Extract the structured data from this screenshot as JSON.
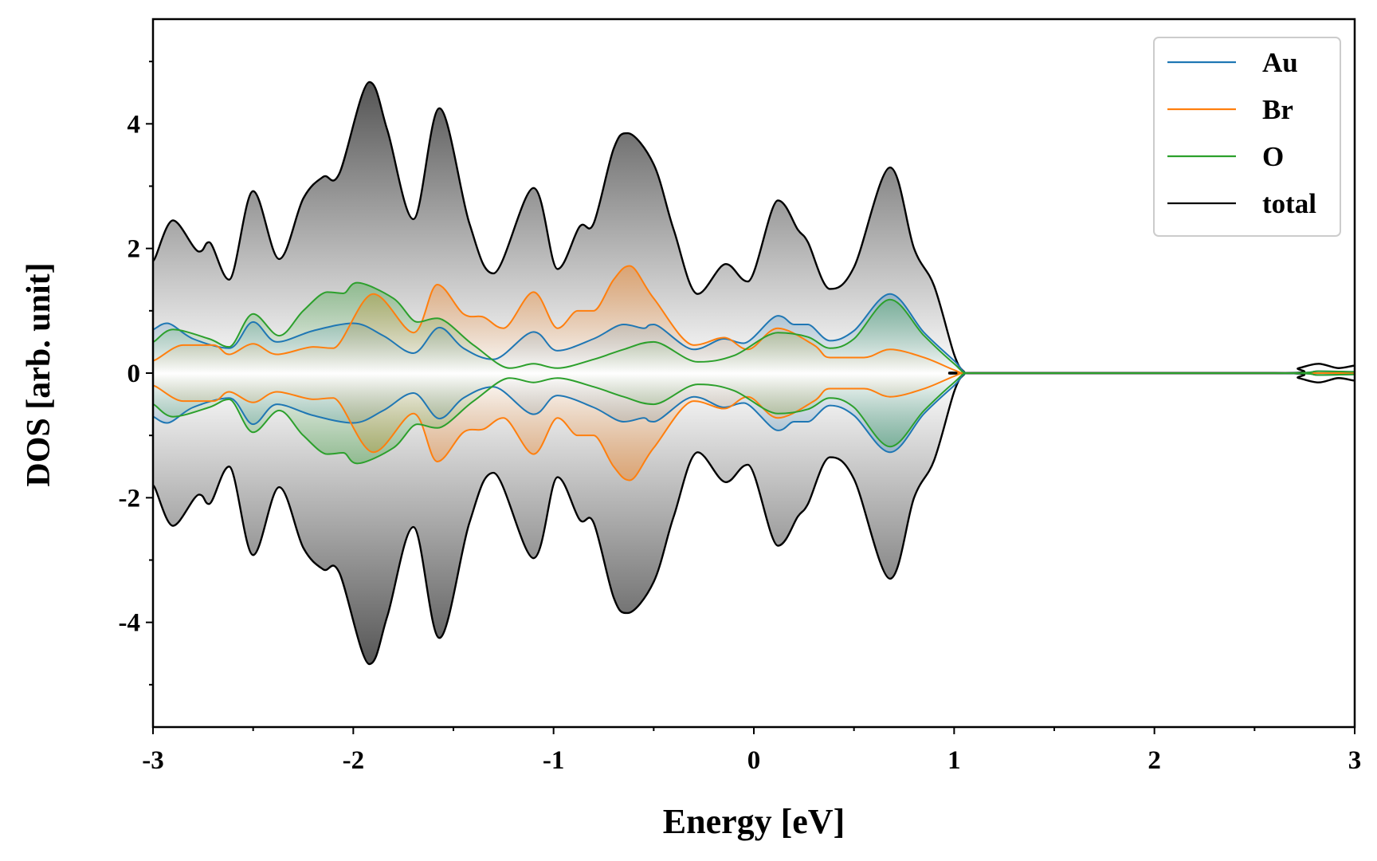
{
  "chart_data": {
    "type": "area",
    "title": "",
    "xlabel": "Energy [eV]",
    "ylabel": "DOS [arb. unit]",
    "xlim": [
      -3,
      3
    ],
    "ylim": [
      -5.68,
      5.68
    ],
    "xticks": [
      -3,
      -2,
      -1,
      0,
      1,
      2,
      3
    ],
    "xtick_labels": [
      "-3",
      "-2",
      "-1",
      "0",
      "1",
      "2",
      "3"
    ],
    "yticks": [
      -4,
      -2,
      0,
      2,
      4
    ],
    "ytick_labels": [
      "-4",
      "-2",
      "0",
      "2",
      "4"
    ],
    "mirrored": true,
    "legend": {
      "placement": "top-right"
    },
    "series": [
      {
        "name": "Au",
        "color": "#1f77b4",
        "x": [
          -3,
          -2.93,
          -2.8,
          -2.62,
          -2.5,
          -2.38,
          -2.2,
          -2.0,
          -1.85,
          -1.7,
          -1.57,
          -1.45,
          -1.3,
          -1.1,
          -0.98,
          -0.8,
          -0.65,
          -0.55,
          -0.5,
          -0.3,
          -0.15,
          -0.05,
          0.12,
          0.2,
          0.27,
          0.38,
          0.5,
          0.68,
          0.85,
          1.0,
          1.07,
          1.2,
          2.6,
          2.82,
          3.0
        ],
        "y": [
          0.7,
          0.8,
          0.55,
          0.4,
          0.82,
          0.5,
          0.68,
          0.8,
          0.6,
          0.32,
          0.73,
          0.4,
          0.22,
          0.66,
          0.36,
          0.55,
          0.78,
          0.72,
          0.78,
          0.38,
          0.55,
          0.48,
          0.92,
          0.78,
          0.78,
          0.52,
          0.68,
          1.27,
          0.65,
          0.2,
          0,
          0,
          0,
          0.03,
          0.02
        ]
      },
      {
        "name": "Br",
        "color": "#ff7f0e",
        "x": [
          -3,
          -2.85,
          -2.7,
          -2.62,
          -2.5,
          -2.38,
          -2.2,
          -2.1,
          -1.9,
          -1.7,
          -1.58,
          -1.45,
          -1.35,
          -1.25,
          -1.1,
          -0.98,
          -0.88,
          -0.8,
          -0.7,
          -0.62,
          -0.5,
          -0.3,
          -0.15,
          -0.03,
          0.12,
          0.3,
          0.38,
          0.55,
          0.68,
          0.85,
          1.0,
          1.06,
          1.2,
          3.0
        ],
        "y": [
          0.2,
          0.45,
          0.45,
          0.3,
          0.47,
          0.3,
          0.42,
          0.4,
          1.27,
          0.65,
          1.42,
          0.95,
          0.9,
          0.72,
          1.3,
          0.72,
          1.0,
          1.0,
          1.5,
          1.72,
          1.2,
          0.45,
          0.57,
          0.38,
          0.72,
          0.45,
          0.25,
          0.25,
          0.38,
          0.25,
          0.05,
          0,
          0,
          0
        ]
      },
      {
        "name": "O",
        "color": "#2ca02c",
        "x": [
          -3,
          -2.9,
          -2.72,
          -2.62,
          -2.5,
          -2.37,
          -2.25,
          -2.13,
          -2.05,
          -1.98,
          -1.8,
          -1.68,
          -1.58,
          -1.4,
          -1.22,
          -1.1,
          -0.98,
          -0.8,
          -0.65,
          -0.5,
          -0.28,
          -0.1,
          0.12,
          0.27,
          0.38,
          0.5,
          0.68,
          0.85,
          1.0,
          1.07,
          1.2,
          2.6,
          2.82,
          3.0
        ],
        "y": [
          0.5,
          0.7,
          0.55,
          0.42,
          0.95,
          0.6,
          1.0,
          1.3,
          1.28,
          1.45,
          1.2,
          0.82,
          0.88,
          0.45,
          0.08,
          0.15,
          0.08,
          0.22,
          0.38,
          0.5,
          0.18,
          0.28,
          0.65,
          0.58,
          0.4,
          0.55,
          1.18,
          0.6,
          0.15,
          0,
          0,
          0,
          0.03,
          0.02
        ]
      },
      {
        "name": "total",
        "color": "#000000",
        "x": [
          -3,
          -2.9,
          -2.77,
          -2.72,
          -2.62,
          -2.5,
          -2.37,
          -2.25,
          -2.15,
          -2.07,
          -1.92,
          -1.83,
          -1.7,
          -1.57,
          -1.42,
          -1.3,
          -1.1,
          -0.98,
          -0.87,
          -0.8,
          -0.7,
          -0.63,
          -0.5,
          -0.4,
          -0.28,
          -0.14,
          -0.03,
          0.12,
          0.22,
          0.27,
          0.38,
          0.5,
          0.68,
          0.8,
          0.9,
          1.0,
          1.05,
          1.1,
          2.6,
          2.72,
          2.82,
          2.92,
          3.0
        ],
        "y": [
          1.8,
          2.45,
          1.95,
          2.1,
          1.5,
          2.92,
          1.83,
          2.8,
          3.15,
          3.2,
          4.67,
          3.9,
          2.47,
          4.25,
          2.4,
          1.6,
          2.97,
          1.67,
          2.35,
          2.4,
          3.6,
          3.85,
          3.35,
          2.3,
          1.27,
          1.75,
          1.47,
          2.77,
          2.3,
          2.1,
          1.35,
          1.7,
          3.3,
          2.0,
          1.4,
          0.3,
          0.02,
          0,
          0,
          0.08,
          0.15,
          0.08,
          0.12
        ]
      }
    ]
  }
}
